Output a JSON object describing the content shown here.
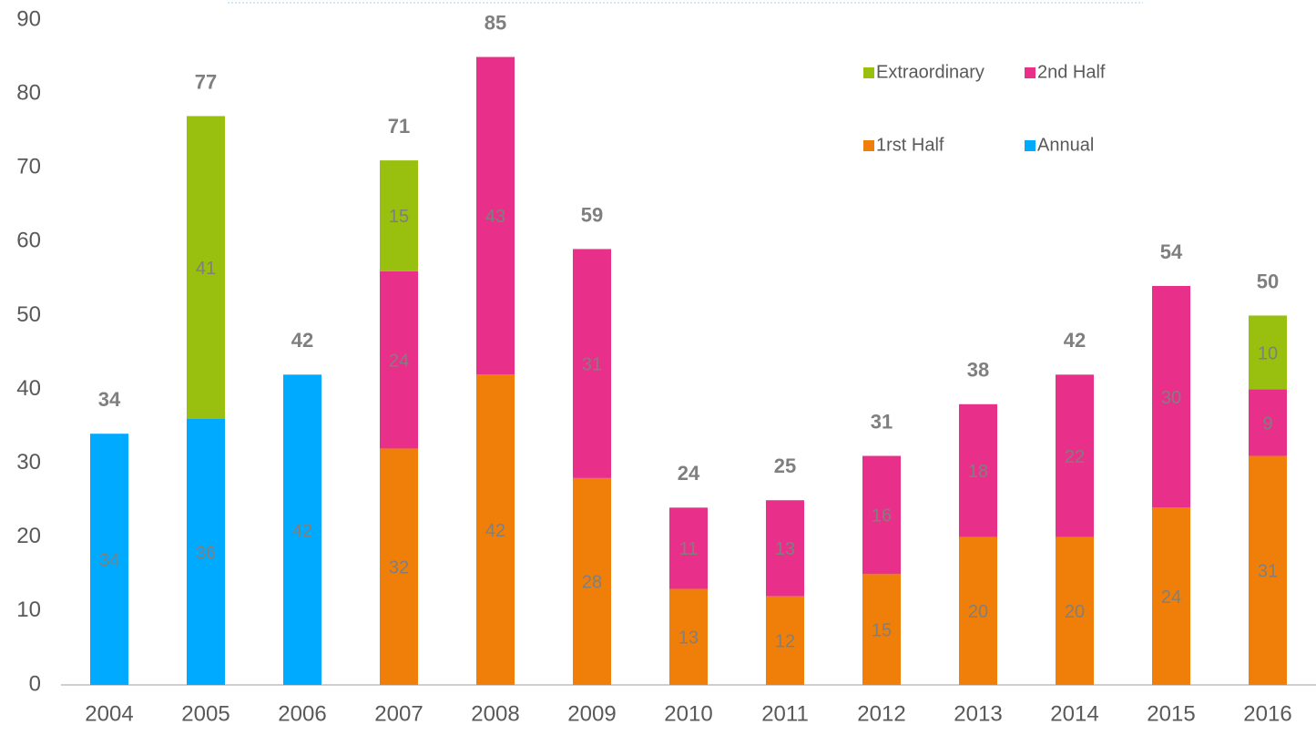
{
  "chart_data": {
    "type": "stacked_bar",
    "categories": [
      "2004",
      "2005",
      "2006",
      "2007",
      "2008",
      "2009",
      "2010",
      "2011",
      "2012",
      "2013",
      "2014",
      "2015",
      "2016"
    ],
    "series": [
      {
        "name": "Annual",
        "color": "#00aaff",
        "values": [
          34,
          36,
          42,
          null,
          null,
          null,
          null,
          null,
          null,
          null,
          null,
          null,
          null
        ]
      },
      {
        "name": "1rst Half",
        "color": "#f07f09",
        "values": [
          null,
          null,
          null,
          32,
          42,
          28,
          13,
          12,
          15,
          20,
          20,
          24,
          31
        ]
      },
      {
        "name": "2nd Half",
        "color": "#e8308a",
        "values": [
          null,
          null,
          null,
          24,
          43,
          31,
          11,
          13,
          16,
          18,
          22,
          30,
          9
        ]
      },
      {
        "name": "Extraordinary",
        "color": "#99bf0f",
        "values": [
          null,
          41,
          null,
          15,
          null,
          null,
          null,
          null,
          null,
          null,
          null,
          null,
          10
        ]
      }
    ],
    "totals": [
      34,
      77,
      42,
      71,
      85,
      59,
      24,
      25,
      31,
      38,
      42,
      54,
      50
    ],
    "ylim": [
      0,
      90
    ],
    "yticks": [
      0,
      10,
      20,
      30,
      40,
      50,
      60,
      70,
      80,
      90
    ],
    "grid": false
  }
}
